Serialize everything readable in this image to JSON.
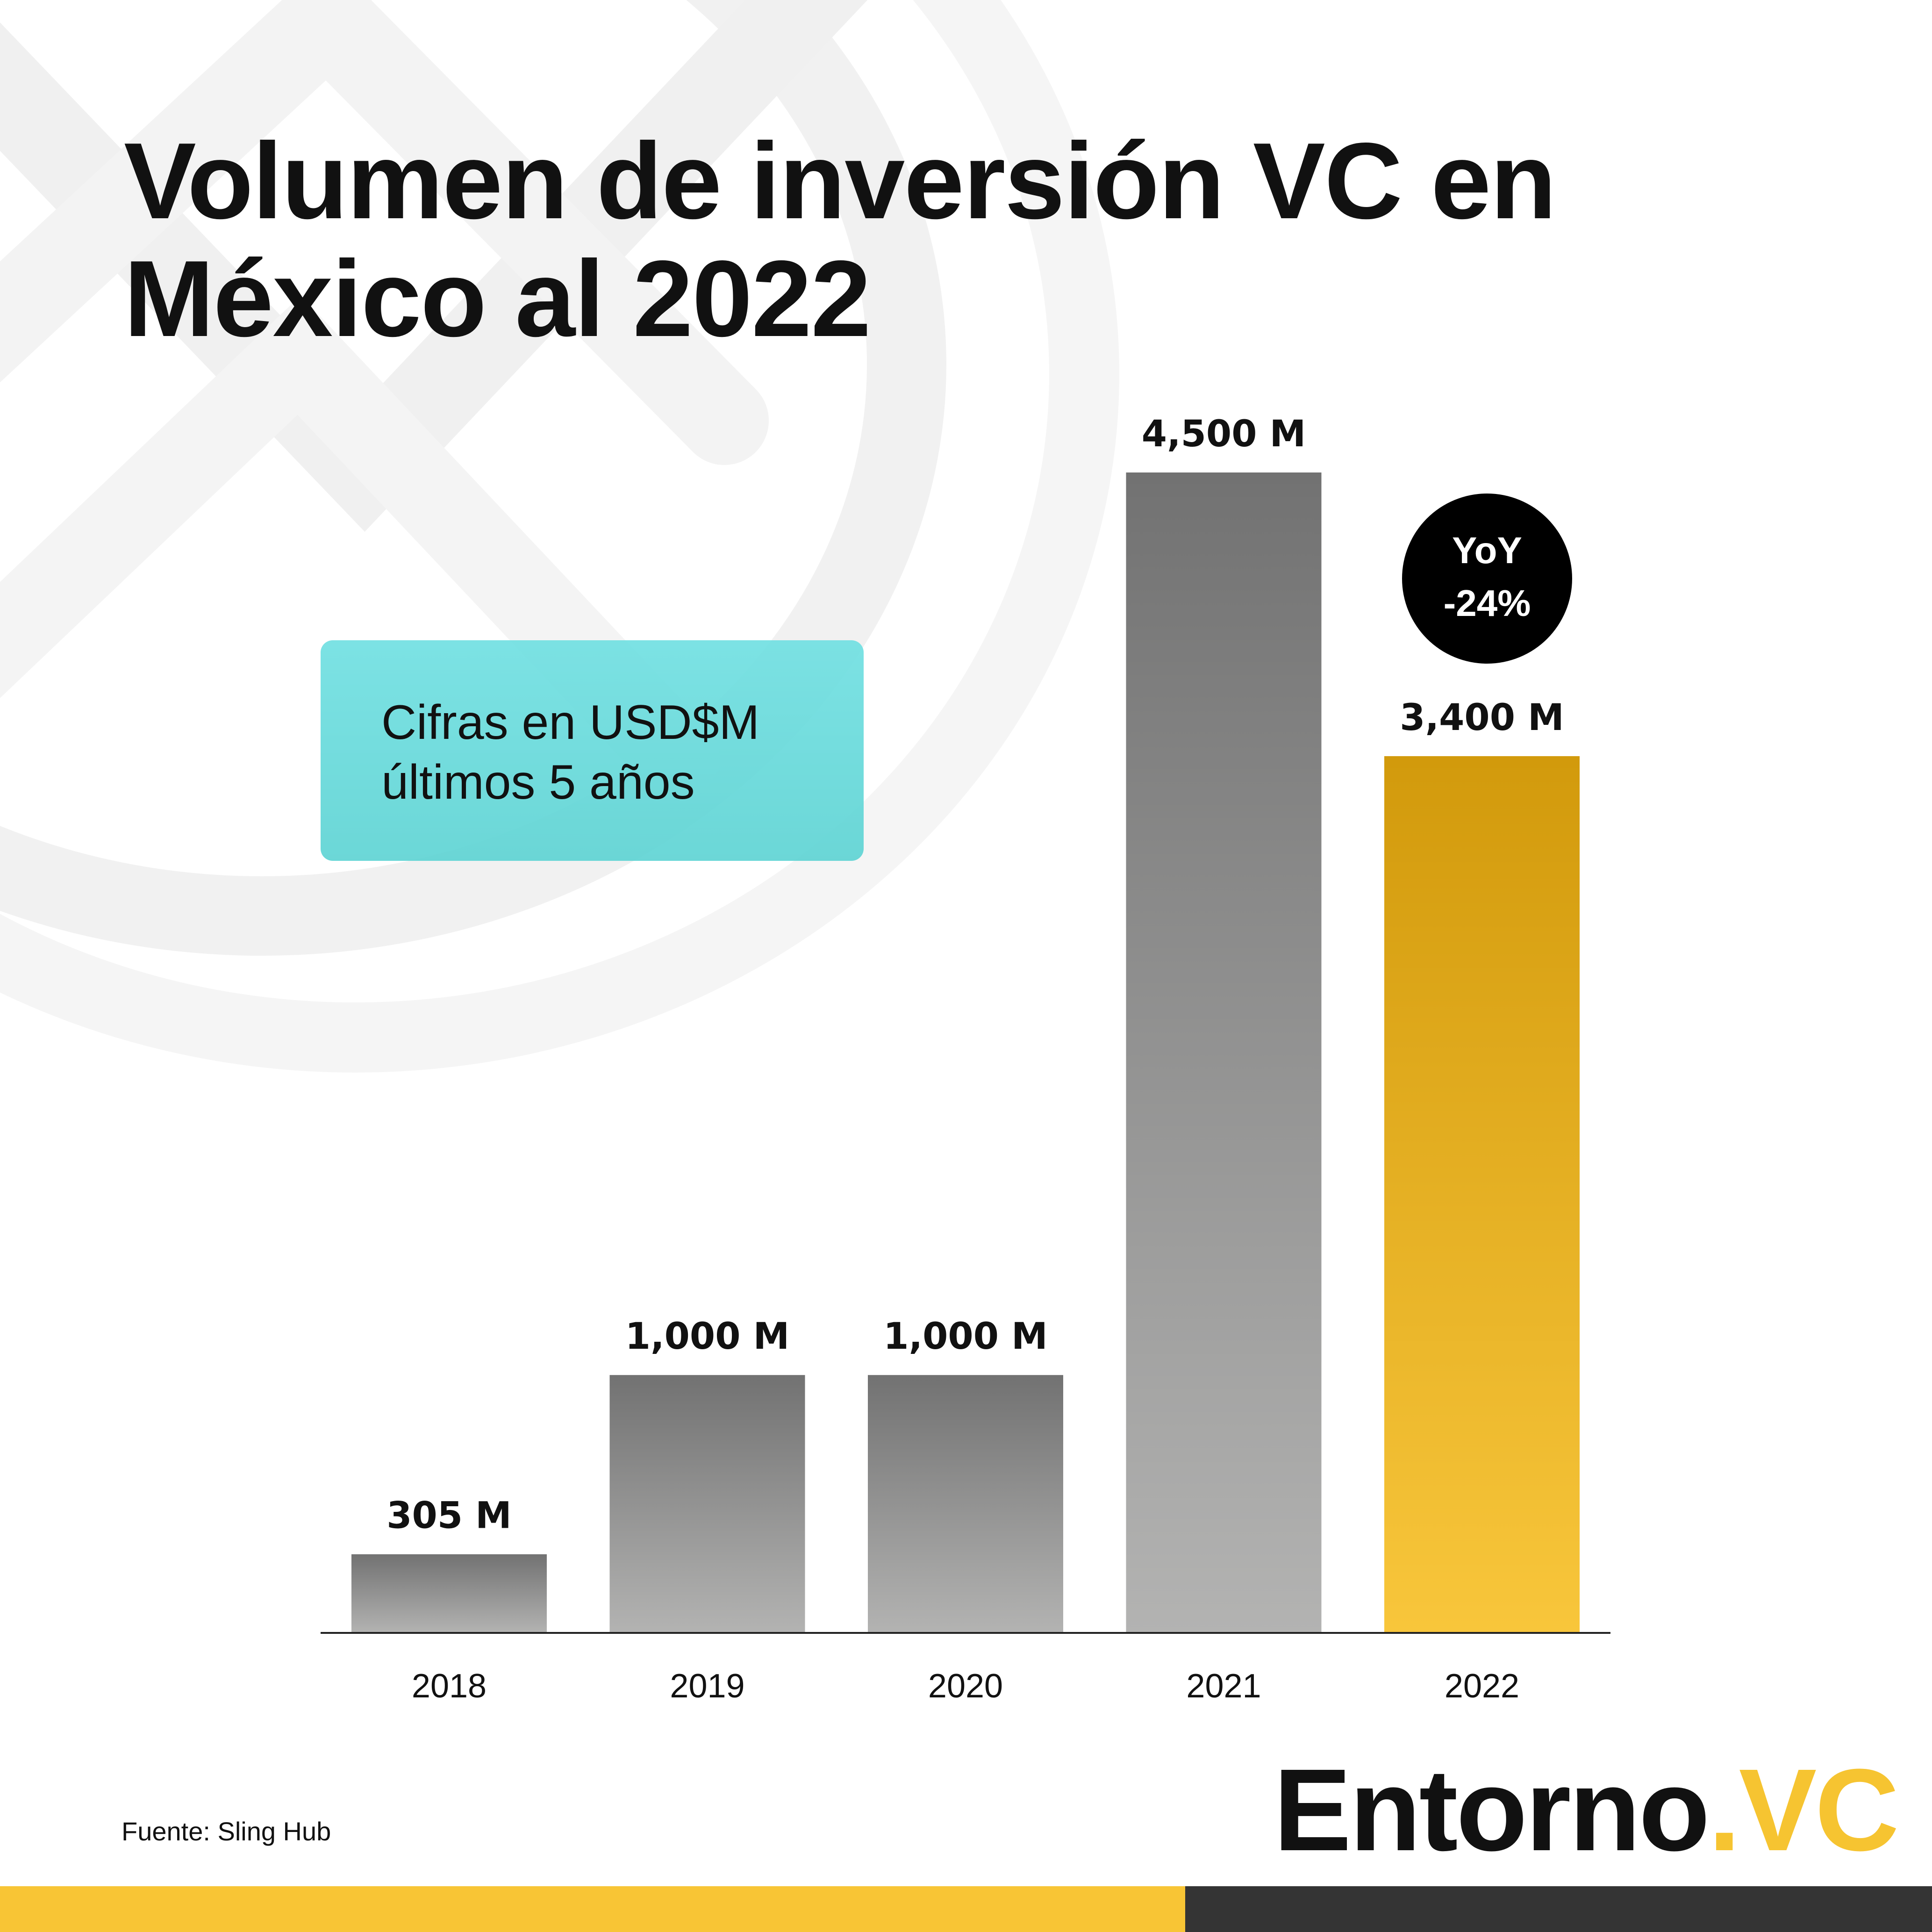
{
  "title": {
    "line1": "Volumen de inversión VC en",
    "line2": "México al 2022"
  },
  "note": {
    "line1": "Cifras en USD$M",
    "line2": "últimos 5 años"
  },
  "yoy_badge": {
    "line1": "YoY",
    "line2": "-24%"
  },
  "source": "Fuente: Sling Hub",
  "brand": {
    "name": "Entorno",
    "suffix": ".VC"
  },
  "colors": {
    "bar_gray_top": "#727272",
    "bar_gray_bottom": "#b3b3b2",
    "bar_highlight_top": "#d29a0c",
    "bar_highlight_bottom": "#f8c63b",
    "footer_yellow": "#f8c535",
    "footer_dark": "#343434",
    "note_box": "#72dfe0"
  },
  "chart_data": {
    "type": "bar",
    "categories": [
      "2018",
      "2019",
      "2020",
      "2021",
      "2022"
    ],
    "values": [
      305,
      1000,
      1000,
      4500,
      3400
    ],
    "value_labels": [
      "305 M",
      "1,000 M",
      "1,000 M",
      "4,500 M",
      "3,400 M"
    ],
    "units": "USD$M",
    "highlight_category": "2022",
    "ylim": [
      0,
      4500
    ],
    "grid": false,
    "xlabel": "",
    "ylabel": ""
  }
}
